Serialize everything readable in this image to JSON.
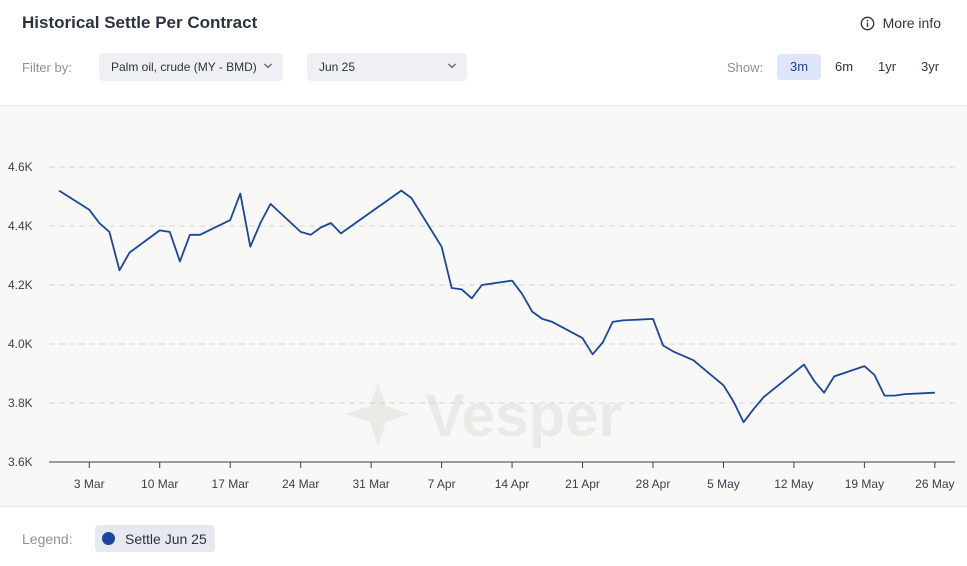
{
  "header": {
    "title": "Historical Settle Per Contract",
    "more_info_label": "More info"
  },
  "filters": {
    "filter_label": "Filter by:",
    "commodity": "Palm oil, crude (MY - BMD)",
    "contract": "Jun 25",
    "show_label": "Show:",
    "ranges": [
      "3m",
      "6m",
      "1yr",
      "3yr"
    ],
    "active_range": "3m"
  },
  "legend": {
    "label": "Legend:",
    "series_name": "Settle Jun 25"
  },
  "watermark": "Vesper",
  "colors": {
    "series": "#1a46a0",
    "active_range_bg": "#dfe6fb"
  },
  "chart_data": {
    "type": "line",
    "ylim": [
      3600,
      4700
    ],
    "yticks": [
      3600,
      3800,
      4000,
      4200,
      4400,
      4600
    ],
    "ytick_labels": [
      "3.6K",
      "3.8K",
      "4.0K",
      "4.2K",
      "4.4K",
      "4.6K"
    ],
    "xlim": [
      "2025-02-27",
      "2025-05-28"
    ],
    "xticks": [
      "2025-03-03",
      "2025-03-10",
      "2025-03-17",
      "2025-03-24",
      "2025-03-31",
      "2025-04-07",
      "2025-04-14",
      "2025-04-21",
      "2025-04-28",
      "2025-05-05",
      "2025-05-12",
      "2025-05-19",
      "2025-05-26"
    ],
    "xtick_labels": [
      "3 Mar",
      "10 Mar",
      "17 Mar",
      "24 Mar",
      "31 Mar",
      "7 Apr",
      "14 Apr",
      "21 Apr",
      "28 Apr",
      "5 May",
      "12 May",
      "19 May",
      "26 May"
    ],
    "grid": "horizontal dashed",
    "series": [
      {
        "name": "Settle Jun 25",
        "x": [
          "2025-02-28",
          "2025-03-03",
          "2025-03-04",
          "2025-03-05",
          "2025-03-06",
          "2025-03-07",
          "2025-03-10",
          "2025-03-11",
          "2025-03-12",
          "2025-03-13",
          "2025-03-14",
          "2025-03-17",
          "2025-03-18",
          "2025-03-19",
          "2025-03-20",
          "2025-03-21",
          "2025-03-24",
          "2025-03-25",
          "2025-03-26",
          "2025-03-27",
          "2025-03-28",
          "2025-04-03",
          "2025-04-04",
          "2025-04-07",
          "2025-04-08",
          "2025-04-09",
          "2025-04-10",
          "2025-04-11",
          "2025-04-14",
          "2025-04-15",
          "2025-04-16",
          "2025-04-17",
          "2025-04-18",
          "2025-04-21",
          "2025-04-22",
          "2025-04-23",
          "2025-04-24",
          "2025-04-25",
          "2025-04-28",
          "2025-04-29",
          "2025-04-30",
          "2025-05-02",
          "2025-05-05",
          "2025-05-06",
          "2025-05-07",
          "2025-05-08",
          "2025-05-09",
          "2025-05-13",
          "2025-05-14",
          "2025-05-15",
          "2025-05-16",
          "2025-05-19",
          "2025-05-20",
          "2025-05-21",
          "2025-05-22",
          "2025-05-23",
          "2025-05-26"
        ],
        "y": [
          4520,
          4455,
          4410,
          4380,
          4250,
          4310,
          4385,
          4380,
          4280,
          4370,
          4370,
          4420,
          4510,
          4330,
          4410,
          4475,
          4380,
          4370,
          4395,
          4410,
          4375,
          4520,
          4495,
          4330,
          4190,
          4185,
          4155,
          4200,
          4215,
          4170,
          4110,
          4085,
          4075,
          4020,
          3965,
          4005,
          4075,
          4080,
          4085,
          3995,
          3975,
          3945,
          3860,
          3805,
          3735,
          3780,
          3820,
          3930,
          3875,
          3835,
          3890,
          3925,
          3895,
          3825,
          3825,
          3830,
          3835
        ]
      }
    ]
  }
}
